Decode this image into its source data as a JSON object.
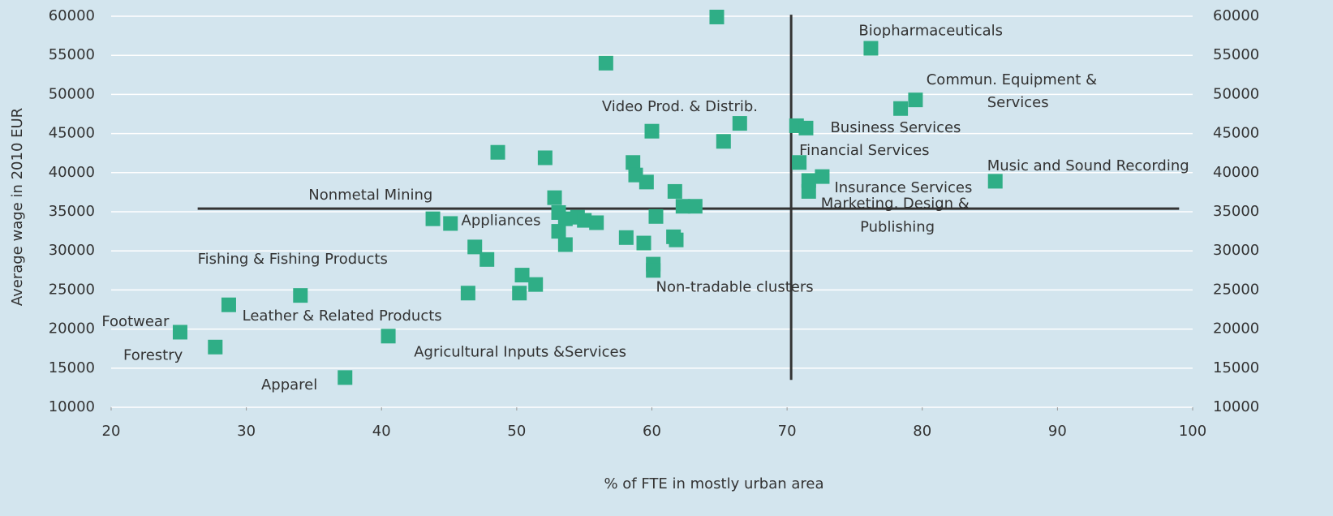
{
  "chart_data": {
    "type": "scatter",
    "x_label": "% of FTE in mostly urban area",
    "y_label": "Average wage in 2010 EUR",
    "color": "#2fae86",
    "grid": true,
    "xlim": [
      20,
      100
    ],
    "xticks": [
      20,
      30,
      40,
      50,
      60,
      70,
      80,
      90,
      100
    ],
    "ylim": [
      10000,
      60000
    ],
    "yticks": [
      10000,
      15000,
      20000,
      25000,
      30000,
      35000,
      40000,
      45000,
      50000,
      55000,
      60000
    ],
    "y2lim": [
      10000,
      60000
    ],
    "y2ticks": [
      10000,
      15000,
      20000,
      25000,
      30000,
      35000,
      40000,
      45000,
      50000,
      55000,
      60000
    ],
    "x": [
      64.8,
      76.2,
      56.6,
      79.5,
      78.4,
      60.0,
      66.5,
      70.7,
      71.4,
      65.3,
      48.6,
      52.1,
      58.6,
      70.9,
      58.8,
      59.6,
      72.6,
      71.6,
      71.6,
      85.4,
      61.7,
      52.8,
      62.3,
      63.2,
      53.1,
      43.8,
      45.1,
      53.6,
      54.5,
      55.0,
      55.9,
      60.3,
      53.1,
      53.6,
      58.1,
      59.4,
      61.6,
      61.8,
      46.9,
      47.8,
      60.1,
      60.1,
      50.4,
      51.4,
      50.2,
      46.4,
      34.0,
      28.7,
      40.5,
      25.1,
      27.7,
      37.3
    ],
    "values": [
      59900,
      55900,
      54000,
      49300,
      48200,
      45300,
      46300,
      46000,
      45700,
      44000,
      42600,
      41900,
      41300,
      41300,
      39700,
      38800,
      39500,
      39000,
      37600,
      38900,
      37600,
      36800,
      35700,
      35700,
      34900,
      34100,
      33500,
      34100,
      34300,
      33900,
      33600,
      34400,
      32500,
      30800,
      31700,
      31000,
      31800,
      31400,
      30500,
      28900,
      28300,
      27500,
      26900,
      25700,
      24600,
      24600,
      24300,
      23100,
      19100,
      19600,
      17700,
      13800
    ],
    "hline": {
      "y": 35400,
      "x": [
        26.4,
        99
      ]
    },
    "vline": {
      "x": 70.3,
      "y": [
        13500,
        60200
      ]
    },
    "annotations": [
      {
        "text": "Biopharmaceuticals",
        "x": 75.3,
        "y": 58100
      },
      {
        "text": "Commun. Equipment &",
        "x": 80.3,
        "y": 51800
      },
      {
        "text": "Services",
        "x": 84.8,
        "y": 48900
      },
      {
        "text": "Video Prod. & Distrib.",
        "x": 56.3,
        "y": 48400
      },
      {
        "text": "Business Services",
        "x": 73.2,
        "y": 45700
      },
      {
        "text": "Financial Services",
        "x": 70.9,
        "y": 42800
      },
      {
        "text": "Music and Sound Recording",
        "x": 84.8,
        "y": 40800
      },
      {
        "text": "Insurance Services",
        "x": 73.5,
        "y": 38000
      },
      {
        "text": "Marketing, Design &",
        "x": 72.5,
        "y": 36000
      },
      {
        "text": "Publishing",
        "x": 75.4,
        "y": 33000
      },
      {
        "text": "Nonmetal Mining",
        "x": 34.6,
        "y": 37100
      },
      {
        "text": "Appliances",
        "x": 45.9,
        "y": 33800
      },
      {
        "text": "Fishing & Fishing Products",
        "x": 26.4,
        "y": 28900
      },
      {
        "text": "Non-tradable clusters",
        "x": 60.3,
        "y": 25300
      },
      {
        "text": "Leather & Related Products",
        "x": 29.7,
        "y": 21600
      },
      {
        "text": "Footwear",
        "x": 19.3,
        "y": 20900
      },
      {
        "text": "Agricultural Inputs &Services",
        "x": 42.4,
        "y": 17000
      },
      {
        "text": "Forestry",
        "x": 20.9,
        "y": 16600
      },
      {
        "text": "Apparel",
        "x": 31.1,
        "y": 12800
      }
    ]
  }
}
